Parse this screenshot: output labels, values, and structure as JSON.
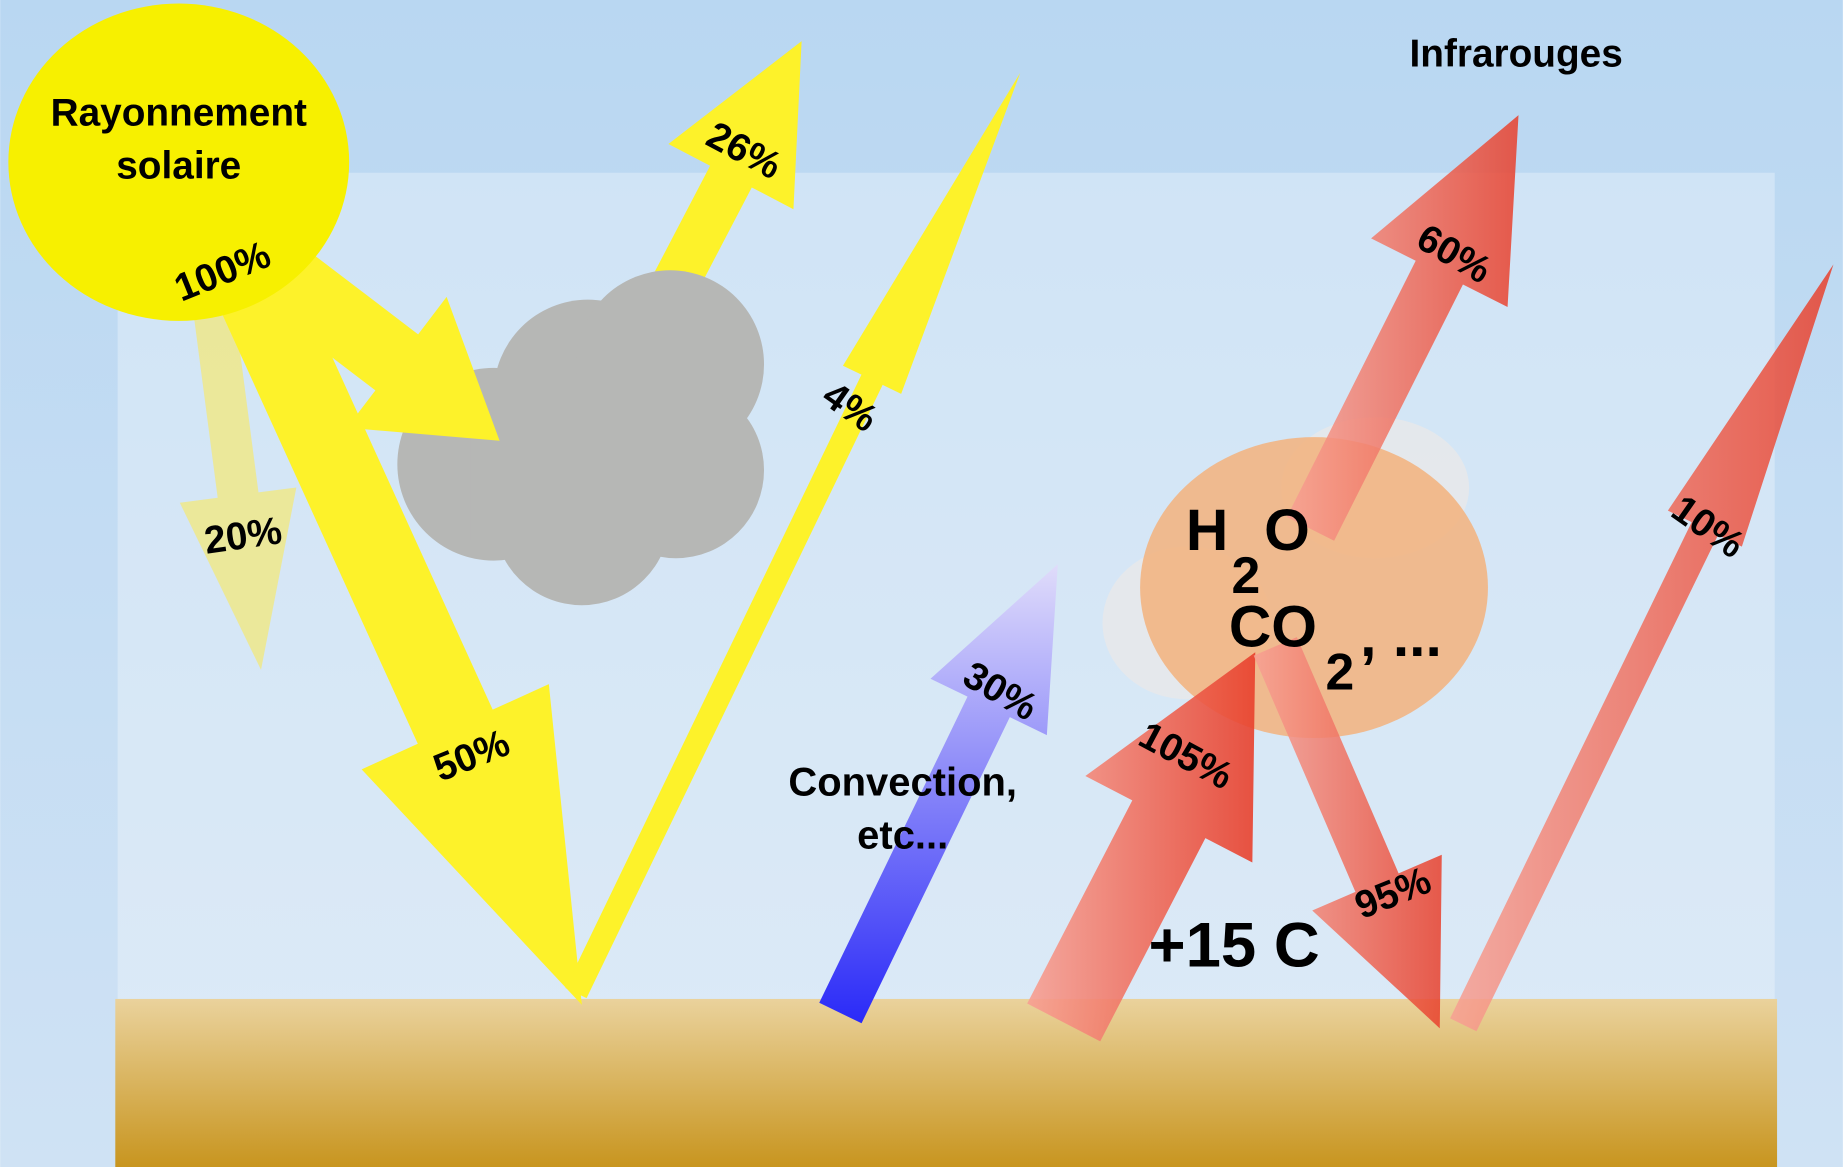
{
  "sun": {
    "line1": "Rayonnement",
    "line2": "solaire"
  },
  "infrared_title": "Infrarouges",
  "arrows": {
    "incoming": "100%",
    "cloud_reflected": "26%",
    "absorbed_air": "20%",
    "to_ground": "50%",
    "ground_reflected": "4%",
    "convection": "30%",
    "ground_ir": "105%",
    "ir_space": "60%",
    "back_radiation": "95%",
    "window": "10%"
  },
  "gases": {
    "h": "H",
    "h_sub": "2",
    "o": "O",
    "co": "CO",
    "co_sub": "2",
    "rest": ", ..."
  },
  "convection": {
    "line1": "Convection,",
    "line2": "etc..."
  },
  "temperature": "+15 C"
}
